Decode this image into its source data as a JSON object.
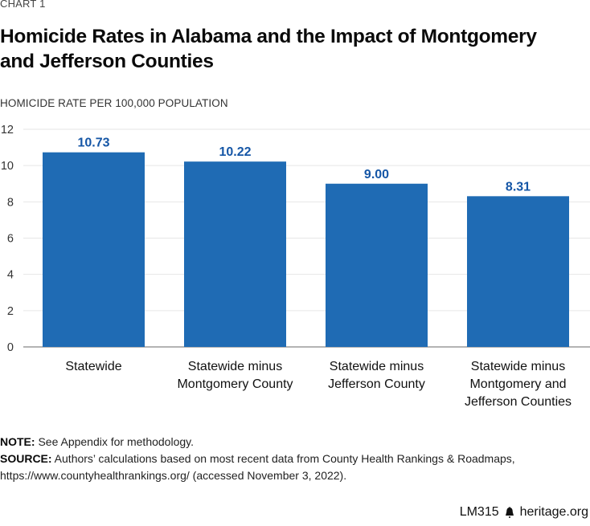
{
  "header": {
    "kicker": "CHART 1",
    "title": "Homicide Rates in Alabama and the Impact of Montgomery and Jefferson Counties"
  },
  "chart_data": {
    "type": "bar",
    "title": "Homicide Rates in Alabama and the Impact of Montgomery and Jefferson Counties",
    "xlabel": "",
    "ylabel": "HOMICIDE RATE PER 100,000 POPULATION",
    "categories": [
      [
        "Statewide"
      ],
      [
        "Statewide minus",
        "Montgomery County"
      ],
      [
        "Statewide minus",
        "Jefferson County"
      ],
      [
        "Statewide minus",
        "Montgomery and",
        "Jefferson Counties"
      ]
    ],
    "values": [
      10.73,
      10.22,
      9.0,
      8.31
    ],
    "value_labels": [
      "10.73",
      "10.22",
      "9.00",
      "8.31"
    ],
    "ylim": [
      0,
      12
    ],
    "yticks": [
      0,
      2,
      4,
      6,
      8,
      10,
      12
    ],
    "grid": true,
    "legend": "none",
    "colors": {
      "bar": "#1f6bb4",
      "value_label": "#1556a6",
      "grid": "#e6e6e6",
      "axis": "#9a9a9a"
    }
  },
  "notes": {
    "note_label": "NOTE:",
    "note_text": " See Appendix for methodology.",
    "source_label": "SOURCE:",
    "source_text_1": " Authors’ calculations based on most recent data from County Health Rankings & Roadmaps,",
    "source_text_2": "https://www.countyhealthrankings.org/ (accessed November 3, 2022)."
  },
  "footer": {
    "code": "LM315",
    "icon": "liberty-bell-icon",
    "site": "heritage.org"
  }
}
